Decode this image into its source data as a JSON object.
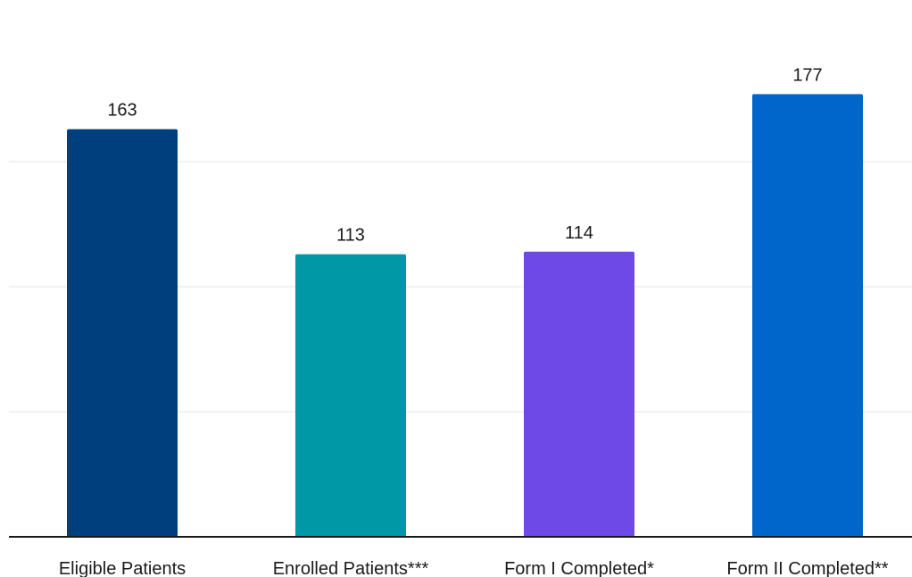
{
  "chart_data": {
    "type": "bar",
    "title": "",
    "xlabel": "",
    "ylabel": "",
    "categories": [
      "Eligible Patients",
      "Enrolled Patients***",
      "Form I Completed*",
      "Form II Completed**"
    ],
    "values": [
      163,
      113,
      114,
      177
    ],
    "colors": [
      "#003f7d",
      "#0097a7",
      "#6f48e8",
      "#0066cc"
    ],
    "ylim": [
      0,
      200
    ],
    "grid": true,
    "data_labels": true
  }
}
